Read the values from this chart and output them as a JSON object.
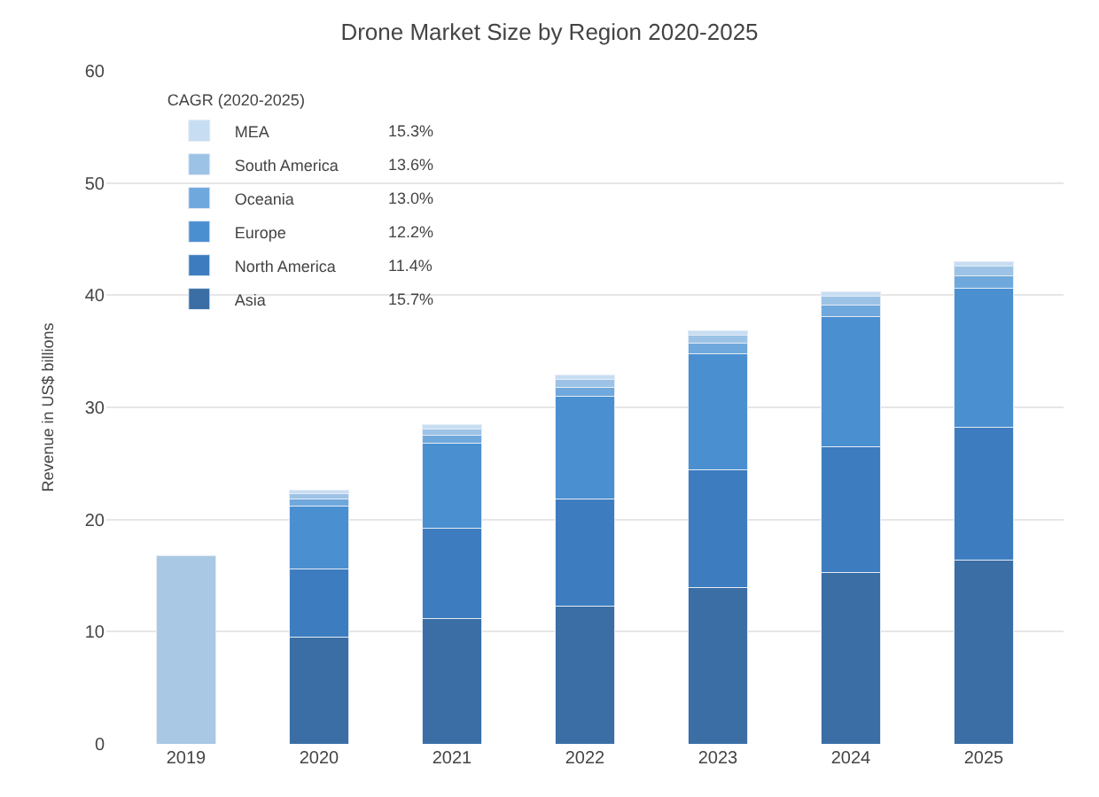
{
  "chart_data": {
    "type": "bar",
    "stacked": true,
    "title": "Drone Market Size by Region 2020-2025",
    "ylabel": "Revenue in US$ billions",
    "categories": [
      "2019",
      "2020",
      "2021",
      "2022",
      "2023",
      "2024",
      "2025"
    ],
    "series": [
      {
        "color": "#a9c8e4",
        "values": [
          16.8,
          null,
          null,
          null,
          null,
          null,
          null
        ]
      },
      {
        "name": "Asia",
        "color": "#3a6ea5",
        "values": [
          null,
          9.5,
          11.2,
          12.3,
          13.9,
          15.3,
          16.4
        ]
      },
      {
        "name": "North America",
        "color": "#3d7dbf",
        "values": [
          null,
          6.1,
          8.0,
          9.5,
          10.5,
          11.2,
          11.8
        ]
      },
      {
        "name": "Europe",
        "color": "#4a8fd0",
        "values": [
          null,
          5.6,
          7.6,
          9.2,
          10.4,
          11.6,
          12.4
        ]
      },
      {
        "name": "Oceania",
        "color": "#6fa8dc",
        "values": [
          null,
          0.6,
          0.7,
          0.8,
          0.9,
          1.0,
          1.1
        ]
      },
      {
        "name": "South America",
        "color": "#9cc3e6",
        "values": [
          null,
          0.5,
          0.6,
          0.7,
          0.7,
          0.8,
          0.9
        ]
      },
      {
        "name": "MEA",
        "color": "#c7ddf2",
        "values": [
          null,
          0.3,
          0.4,
          0.4,
          0.4,
          0.4,
          0.4
        ]
      }
    ],
    "legend_title": "CAGR (2020-2025)",
    "annotations": [
      "15.3%\n13.6%\n13.0%\n12.2%\n11.4%\n15.7%"
    ],
    "ylim": [
      0,
      60
    ],
    "yticks": [
      0,
      10,
      20,
      30,
      40,
      50,
      60
    ],
    "grid": "y",
    "legend": "top left"
  }
}
